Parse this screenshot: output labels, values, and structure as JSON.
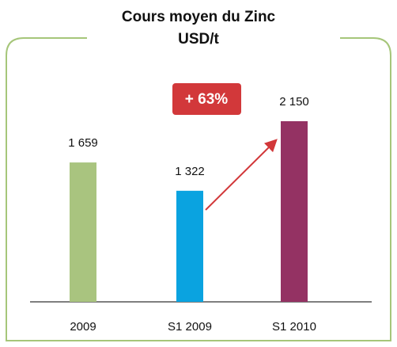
{
  "chart_data": {
    "type": "bar",
    "title": "Cours moyen du Zinc",
    "subtitle": "USD/t",
    "categories": [
      "2009",
      "S1 2009",
      "S1 2010"
    ],
    "values": [
      1659,
      1322,
      2150
    ],
    "value_labels": [
      "1 659",
      "1 322",
      "2 150"
    ],
    "colors": [
      "#a9c47f",
      "#0aa3e0",
      "#943263"
    ],
    "annotation": "+ 63%"
  }
}
